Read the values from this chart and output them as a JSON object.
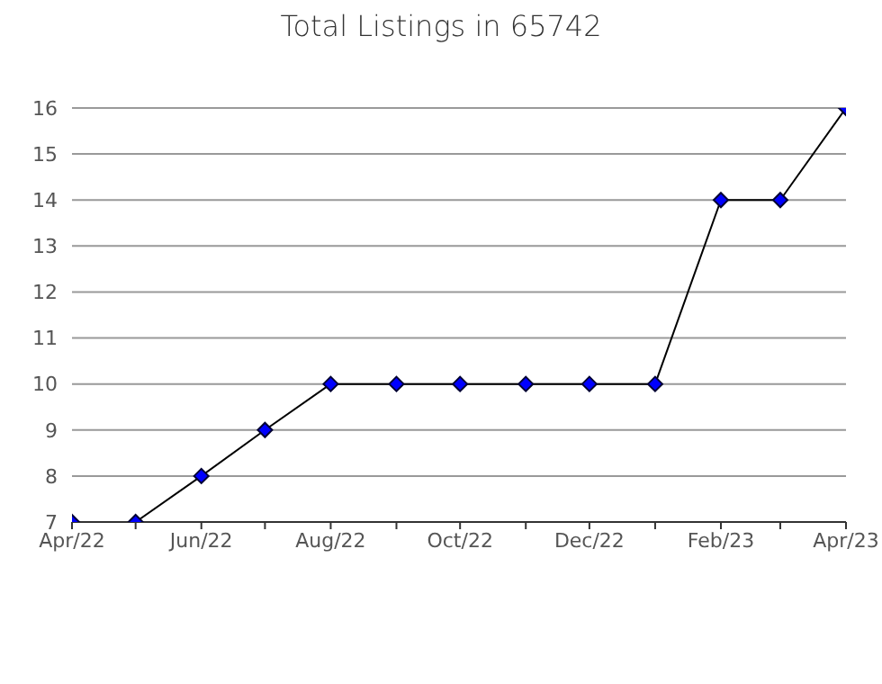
{
  "chart_data": {
    "type": "line",
    "title": "Total Listings in 65742",
    "x": [
      "2022-04",
      "2022-05",
      "2022-06",
      "2022-07",
      "2022-08",
      "2022-09",
      "2022-10",
      "2022-11",
      "2022-12",
      "2023-01",
      "2023-02",
      "2023-03",
      "2023-04"
    ],
    "series": [
      {
        "color": "#0000ff",
        "values": [
          7,
          7,
          8,
          9,
          10,
          10,
          10,
          10,
          10,
          10,
          14,
          14,
          16
        ]
      }
    ],
    "xlim": [
      "2022-04",
      "2023-04"
    ],
    "xticks": [
      {
        "value": "2022-04",
        "label": "Apr/22"
      },
      {
        "value": "2022-05",
        "label": null
      },
      {
        "value": "2022-06",
        "label": "Jun/22"
      },
      {
        "value": "2022-07",
        "label": null
      },
      {
        "value": "2022-08",
        "label": "Aug/22"
      },
      {
        "value": "2022-09",
        "label": null
      },
      {
        "value": "2022-10",
        "label": "Oct/22"
      },
      {
        "value": "2022-11",
        "label": null
      },
      {
        "value": "2022-12",
        "label": "Dec/22"
      },
      {
        "value": "2023-01",
        "label": null
      },
      {
        "value": "2023-02",
        "label": "Feb/23"
      },
      {
        "value": "2023-03",
        "label": null
      },
      {
        "value": "2023-04",
        "label": "Apr/23"
      }
    ],
    "ylim": [
      7,
      16
    ],
    "yticks": [
      7,
      8,
      9,
      10,
      11,
      12,
      13,
      14,
      15,
      16
    ],
    "grid": "y",
    "marker": "diamond",
    "legend": false
  }
}
